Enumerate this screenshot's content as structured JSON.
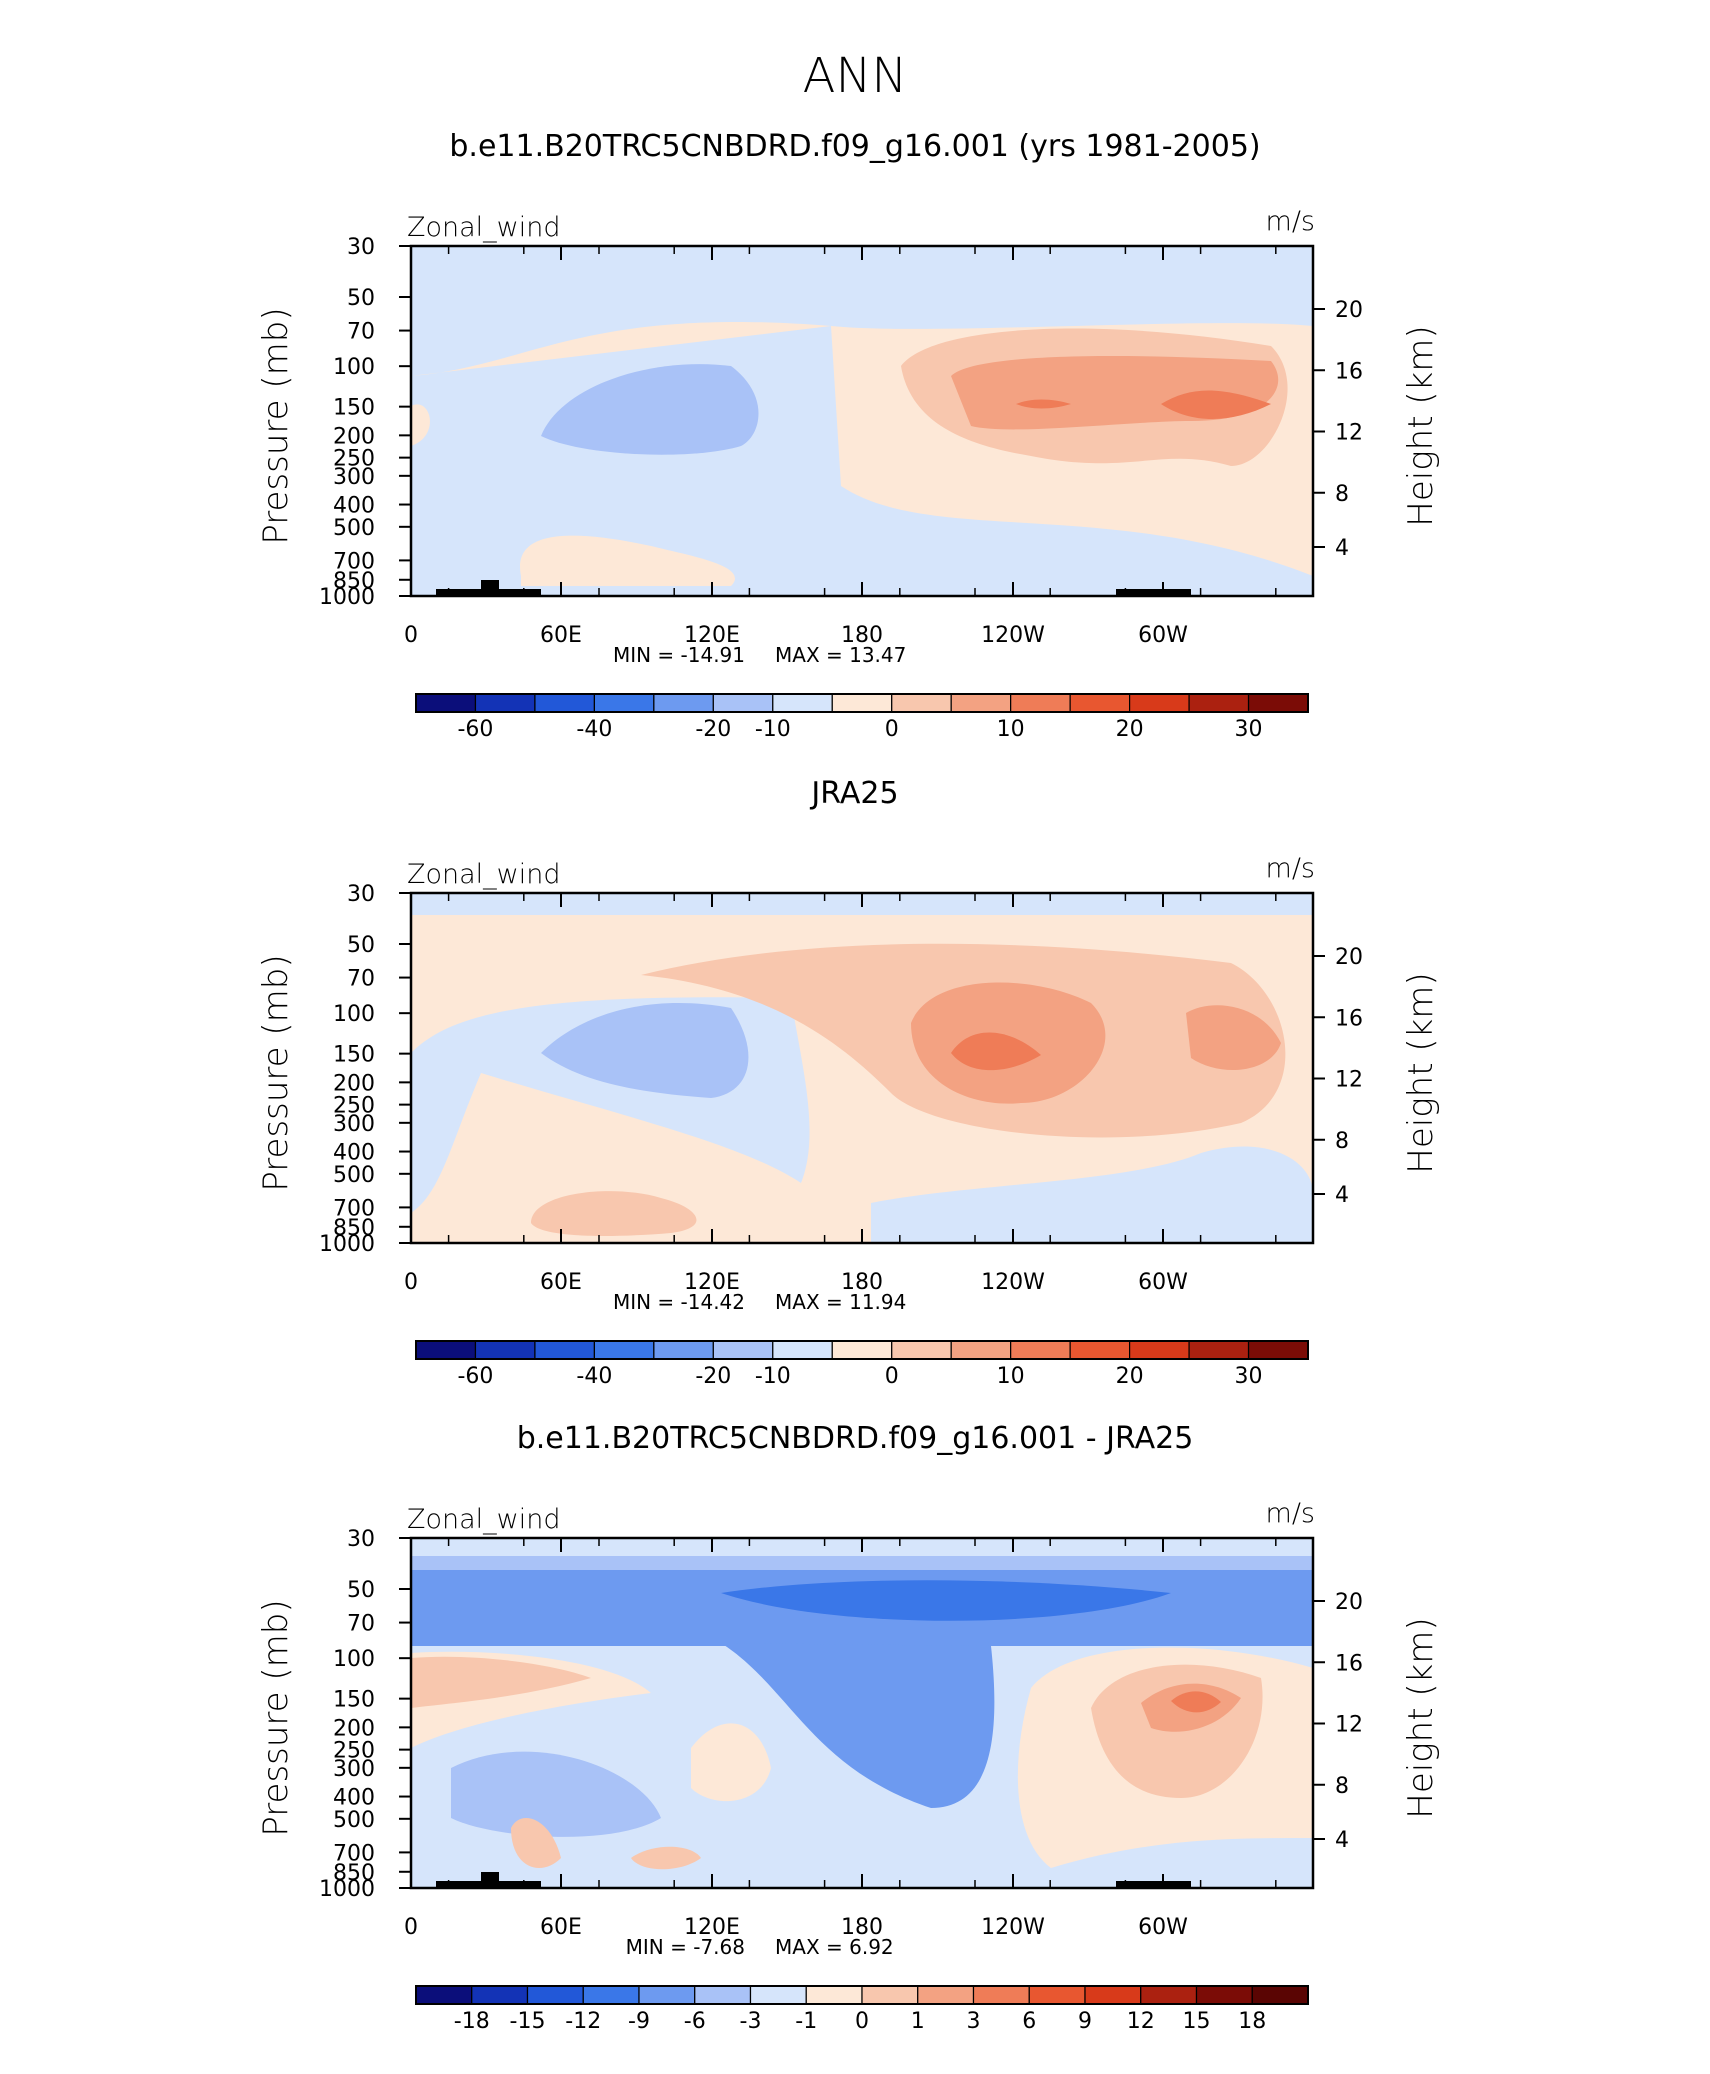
{
  "figure": {
    "title": "ANN"
  },
  "chart_data": [
    {
      "type": "heatmap",
      "title": "b.e11.B20TRC5CNBDRD.f09_g16.001 (yrs 1981-2005)",
      "left_label": "Zonal_wind",
      "right_label": "m/s",
      "ylabel": "Pressure (mb)",
      "y2label": "Height (km)",
      "x_ticks": [
        "0",
        "60E",
        "120E",
        "180",
        "120W",
        "60W"
      ],
      "y_ticks": [
        "30",
        "50",
        "70",
        "100",
        "150",
        "200",
        "250",
        "300",
        "400",
        "500",
        "700",
        "850",
        "1000"
      ],
      "y2_ticks": [
        "20",
        "16",
        "12",
        "8",
        "4"
      ],
      "min_label": "MIN = -14.91",
      "max_label": "MAX = 13.47",
      "min": -14.91,
      "max": 13.47,
      "colorbar_labels": [
        "-60",
        "-40",
        "-20",
        "-10",
        "0",
        "10",
        "20",
        "30"
      ],
      "colorbar_colors": [
        "#0b0e7a",
        "#1333b6",
        "#2258d8",
        "#3a77e8",
        "#6d9af0",
        "#a9c2f7",
        "#d6e5fb",
        "#fde8d7",
        "#f8c7ae",
        "#f3a282",
        "#ef7c57",
        "#e85730",
        "#d83a1a",
        "#ab2110",
        "#7b0c06"
      ]
    },
    {
      "type": "heatmap",
      "title": "JRA25",
      "left_label": "Zonal_wind",
      "right_label": "m/s",
      "ylabel": "Pressure (mb)",
      "y2label": "Height (km)",
      "x_ticks": [
        "0",
        "60E",
        "120E",
        "180",
        "120W",
        "60W"
      ],
      "y_ticks": [
        "30",
        "50",
        "70",
        "100",
        "150",
        "200",
        "250",
        "300",
        "400",
        "500",
        "700",
        "850",
        "1000"
      ],
      "y2_ticks": [
        "20",
        "16",
        "12",
        "8",
        "4"
      ],
      "min_label": "MIN = -14.42",
      "max_label": "MAX = 11.94",
      "min": -14.42,
      "max": 11.94,
      "colorbar_labels": [
        "-60",
        "-40",
        "-20",
        "-10",
        "0",
        "10",
        "20",
        "30"
      ],
      "colorbar_colors": [
        "#0b0e7a",
        "#1333b6",
        "#2258d8",
        "#3a77e8",
        "#6d9af0",
        "#a9c2f7",
        "#d6e5fb",
        "#fde8d7",
        "#f8c7ae",
        "#f3a282",
        "#ef7c57",
        "#e85730",
        "#d83a1a",
        "#ab2110",
        "#7b0c06"
      ]
    },
    {
      "type": "heatmap",
      "title": "b.e11.B20TRC5CNBDRD.f09_g16.001 - JRA25",
      "left_label": "Zonal_wind",
      "right_label": "m/s",
      "ylabel": "Pressure (mb)",
      "y2label": "Height (km)",
      "x_ticks": [
        "0",
        "60E",
        "120E",
        "180",
        "120W",
        "60W"
      ],
      "y_ticks": [
        "30",
        "50",
        "70",
        "100",
        "150",
        "200",
        "250",
        "300",
        "400",
        "500",
        "700",
        "850",
        "1000"
      ],
      "y2_ticks": [
        "20",
        "16",
        "12",
        "8",
        "4"
      ],
      "min_label": "MIN = -7.68",
      "max_label": "MAX = 6.92",
      "min": -7.68,
      "max": 6.92,
      "colorbar_labels": [
        "-18",
        "-15",
        "-12",
        "-9",
        "-6",
        "-3",
        "-1",
        "0",
        "1",
        "3",
        "6",
        "9",
        "12",
        "15",
        "18"
      ],
      "colorbar_colors": [
        "#0b0e7a",
        "#1333b6",
        "#2258d8",
        "#3a77e8",
        "#6d9af0",
        "#a9c2f7",
        "#d6e5fb",
        "#fde8d7",
        "#f8c7ae",
        "#f3a282",
        "#ef7c57",
        "#e85730",
        "#d83a1a",
        "#ab2110",
        "#7b0c06",
        "#5a0503"
      ]
    }
  ]
}
